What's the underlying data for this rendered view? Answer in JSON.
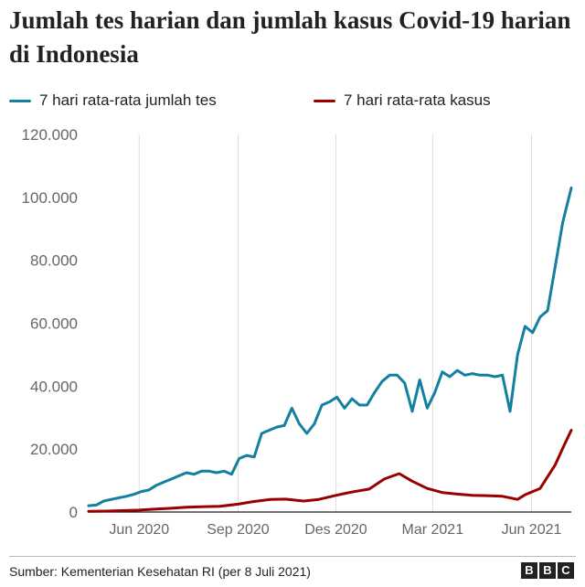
{
  "title": "Jumlah tes harian dan jumlah kasus Covid-19 harian di Indonesia",
  "source": "Sumber: Kementerian Kesehatan RI (per 8 Juli 2021)",
  "logo": [
    "B",
    "B",
    "C"
  ],
  "colors": {
    "tests": "#1380a1",
    "cases": "#990000",
    "grid": "#dddddd",
    "axis": "#222222",
    "tick_text": "#666666"
  },
  "chart_data": {
    "type": "line",
    "title": "Jumlah tes harian dan jumlah kasus Covid-19 harian di Indonesia",
    "xlabel": "",
    "ylabel": "",
    "x_range": [
      "2020-04-15",
      "2021-07-08"
    ],
    "ylim": [
      0,
      120000
    ],
    "yticks": [
      0,
      20000,
      40000,
      60000,
      80000,
      100000,
      120000
    ],
    "ytick_labels": [
      "0",
      "20.000",
      "40.000",
      "60.000",
      "80.000",
      "100.000",
      "120.000"
    ],
    "xticks": [
      "2020-06-01",
      "2020-09-01",
      "2020-12-01",
      "2021-03-01",
      "2021-06-01"
    ],
    "xtick_labels": [
      "Jun 2020",
      "Sep 2020",
      "Des 2020",
      "Mar 2021",
      "Jun 2021"
    ],
    "grid": "vertical",
    "legend_position": "top",
    "series": [
      {
        "name": "7 hari rata-rata jumlah tes",
        "color": "#1380a1",
        "points": [
          [
            "2020-04-15",
            2000
          ],
          [
            "2020-04-22",
            2200
          ],
          [
            "2020-04-29",
            3500
          ],
          [
            "2020-05-06",
            4000
          ],
          [
            "2020-05-13",
            4500
          ],
          [
            "2020-05-20",
            5000
          ],
          [
            "2020-05-27",
            5600
          ],
          [
            "2020-06-03",
            6500
          ],
          [
            "2020-06-10",
            7000
          ],
          [
            "2020-06-17",
            8500
          ],
          [
            "2020-06-24",
            9500
          ],
          [
            "2020-07-01",
            10500
          ],
          [
            "2020-07-08",
            11500
          ],
          [
            "2020-07-15",
            12500
          ],
          [
            "2020-07-22",
            12000
          ],
          [
            "2020-07-29",
            13000
          ],
          [
            "2020-08-05",
            13000
          ],
          [
            "2020-08-12",
            12500
          ],
          [
            "2020-08-19",
            13000
          ],
          [
            "2020-08-26",
            12000
          ],
          [
            "2020-09-02",
            17000
          ],
          [
            "2020-09-09",
            18000
          ],
          [
            "2020-09-16",
            17500
          ],
          [
            "2020-09-23",
            25000
          ],
          [
            "2020-09-30",
            26000
          ],
          [
            "2020-10-07",
            27000
          ],
          [
            "2020-10-14",
            27500
          ],
          [
            "2020-10-21",
            33000
          ],
          [
            "2020-10-28",
            28000
          ],
          [
            "2020-11-04",
            25000
          ],
          [
            "2020-11-11",
            28000
          ],
          [
            "2020-11-18",
            34000
          ],
          [
            "2020-11-25",
            35000
          ],
          [
            "2020-12-02",
            36500
          ],
          [
            "2020-12-09",
            33000
          ],
          [
            "2020-12-16",
            36000
          ],
          [
            "2020-12-23",
            34000
          ],
          [
            "2020-12-30",
            34000
          ],
          [
            "2021-01-06",
            38000
          ],
          [
            "2021-01-13",
            41500
          ],
          [
            "2021-01-20",
            43500
          ],
          [
            "2021-01-27",
            43500
          ],
          [
            "2021-02-03",
            41000
          ],
          [
            "2021-02-10",
            32000
          ],
          [
            "2021-02-17",
            42000
          ],
          [
            "2021-02-24",
            33000
          ],
          [
            "2021-03-03",
            38000
          ],
          [
            "2021-03-10",
            44500
          ],
          [
            "2021-03-17",
            43000
          ],
          [
            "2021-03-24",
            45000
          ],
          [
            "2021-03-31",
            43500
          ],
          [
            "2021-04-07",
            44000
          ],
          [
            "2021-04-14",
            43500
          ],
          [
            "2021-04-21",
            43500
          ],
          [
            "2021-04-28",
            43000
          ],
          [
            "2021-05-05",
            43500
          ],
          [
            "2021-05-12",
            32000
          ],
          [
            "2021-05-19",
            50000
          ],
          [
            "2021-05-26",
            59000
          ],
          [
            "2021-06-02",
            57000
          ],
          [
            "2021-06-09",
            62000
          ],
          [
            "2021-06-16",
            64000
          ],
          [
            "2021-06-23",
            78000
          ],
          [
            "2021-06-30",
            92000
          ],
          [
            "2021-07-08",
            103000
          ]
        ]
      },
      {
        "name": "7 hari rata-rata kasus",
        "color": "#990000",
        "points": [
          [
            "2020-04-15",
            200
          ],
          [
            "2020-05-01",
            300
          ],
          [
            "2020-05-15",
            450
          ],
          [
            "2020-06-01",
            600
          ],
          [
            "2020-06-15",
            900
          ],
          [
            "2020-07-01",
            1200
          ],
          [
            "2020-07-15",
            1500
          ],
          [
            "2020-08-01",
            1700
          ],
          [
            "2020-08-15",
            1800
          ],
          [
            "2020-09-01",
            2500
          ],
          [
            "2020-09-15",
            3300
          ],
          [
            "2020-10-01",
            4000
          ],
          [
            "2020-10-15",
            4100
          ],
          [
            "2020-11-01",
            3500
          ],
          [
            "2020-11-15",
            4000
          ],
          [
            "2020-12-01",
            5300
          ],
          [
            "2020-12-15",
            6300
          ],
          [
            "2021-01-01",
            7300
          ],
          [
            "2021-01-15",
            10500
          ],
          [
            "2021-01-29",
            12200
          ],
          [
            "2021-02-10",
            9800
          ],
          [
            "2021-02-24",
            7500
          ],
          [
            "2021-03-10",
            6200
          ],
          [
            "2021-03-24",
            5700
          ],
          [
            "2021-04-07",
            5300
          ],
          [
            "2021-04-21",
            5200
          ],
          [
            "2021-05-05",
            5000
          ],
          [
            "2021-05-19",
            4000
          ],
          [
            "2021-05-26",
            5500
          ],
          [
            "2021-06-09",
            7500
          ],
          [
            "2021-06-23",
            15000
          ],
          [
            "2021-07-01",
            21000
          ],
          [
            "2021-07-08",
            26000
          ]
        ]
      }
    ]
  }
}
